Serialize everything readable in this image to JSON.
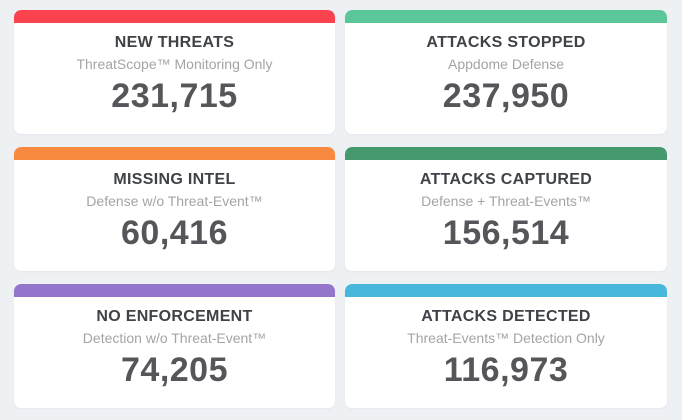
{
  "page": {
    "background_color": "#eef1f4",
    "card_background_color": "#ffffff"
  },
  "text_colors": {
    "title": "#3f4247",
    "subtitle": "#a3a4a6",
    "value": "#55565a"
  },
  "cards": [
    {
      "id": "new-threats",
      "title": "NEW THREATS",
      "subtitle": "ThreatScope™ Monitoring Only",
      "value": "231,715",
      "accent_color": "#fb4350"
    },
    {
      "id": "attacks-stopped",
      "title": "ATTACKS STOPPED",
      "subtitle": "Appdome Defense",
      "value": "237,950",
      "accent_color": "#5bc69a"
    },
    {
      "id": "missing-intel",
      "title": "MISSING INTEL",
      "subtitle": "Defense w/o Threat-Event™",
      "value": "60,416",
      "accent_color": "#f78a3e"
    },
    {
      "id": "attacks-captured",
      "title": "ATTACKS CAPTURED",
      "subtitle": "Defense + Threat-Events™",
      "value": "156,514",
      "accent_color": "#45996f"
    },
    {
      "id": "no-enforcement",
      "title": "NO ENFORCEMENT",
      "subtitle": "Detection w/o Threat-Event™",
      "value": "74,205",
      "accent_color": "#9475cc"
    },
    {
      "id": "attacks-detected",
      "title": "ATTACKS DETECTED",
      "subtitle": "Threat-Events™ Detection Only",
      "value": "116,973",
      "accent_color": "#47b8dc"
    }
  ]
}
